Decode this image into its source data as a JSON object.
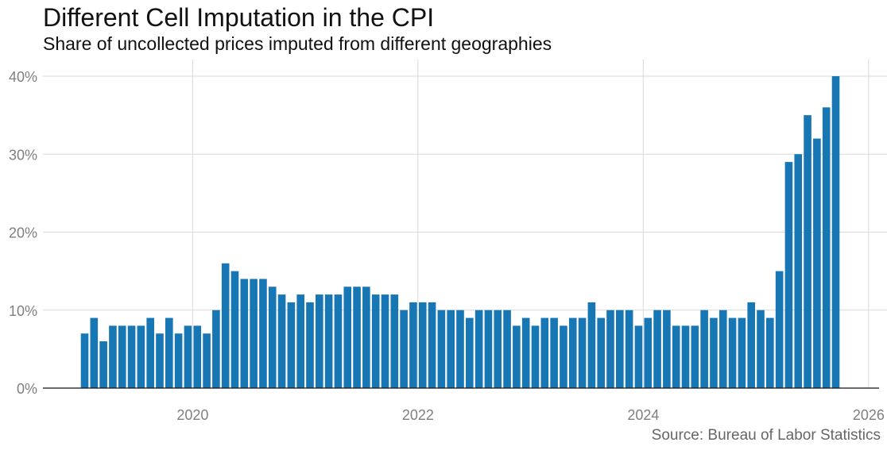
{
  "title": "Different Cell Imputation in the CPI",
  "subtitle": "Share of uncollected prices imputed from different geographies",
  "source": "Source: Bureau of Labor Statistics",
  "chart_data": {
    "type": "bar",
    "title": "Different Cell Imputation in the CPI",
    "subtitle": "Share of uncollected prices imputed from different geographies",
    "xlabel": "",
    "ylabel": "",
    "x_start": "2019-01",
    "x_ticks": [
      "2020",
      "2022",
      "2024",
      "2026"
    ],
    "y_ticks": [
      "0%",
      "10%",
      "20%",
      "30%",
      "40%"
    ],
    "ylim": [
      0,
      40
    ],
    "grid": true,
    "bar_color": "#1777b4",
    "categories": [
      "2019-01",
      "2019-02",
      "2019-03",
      "2019-04",
      "2019-05",
      "2019-06",
      "2019-07",
      "2019-08",
      "2019-09",
      "2019-10",
      "2019-11",
      "2019-12",
      "2020-01",
      "2020-02",
      "2020-03",
      "2020-04",
      "2020-05",
      "2020-06",
      "2020-07",
      "2020-08",
      "2020-09",
      "2020-10",
      "2020-11",
      "2020-12",
      "2021-01",
      "2021-02",
      "2021-03",
      "2021-04",
      "2021-05",
      "2021-06",
      "2021-07",
      "2021-08",
      "2021-09",
      "2021-10",
      "2021-11",
      "2021-12",
      "2022-01",
      "2022-02",
      "2022-03",
      "2022-04",
      "2022-05",
      "2022-06",
      "2022-07",
      "2022-08",
      "2022-09",
      "2022-10",
      "2022-11",
      "2022-12",
      "2023-01",
      "2023-02",
      "2023-03",
      "2023-04",
      "2023-05",
      "2023-06",
      "2023-07",
      "2023-08",
      "2023-09",
      "2023-10",
      "2023-11",
      "2023-12",
      "2024-01",
      "2024-02",
      "2024-03",
      "2024-04",
      "2024-05",
      "2024-06",
      "2024-07",
      "2024-08",
      "2024-09",
      "2024-10",
      "2024-11",
      "2024-12",
      "2025-01",
      "2025-02",
      "2025-03",
      "2025-04",
      "2025-05",
      "2025-06",
      "2025-07",
      "2025-08",
      "2025-09"
    ],
    "values": [
      7,
      9,
      6,
      8,
      8,
      8,
      8,
      9,
      7,
      9,
      7,
      8,
      8,
      7,
      10,
      16,
      15,
      14,
      14,
      14,
      13,
      12,
      11,
      12,
      11,
      12,
      12,
      12,
      13,
      13,
      13,
      12,
      12,
      12,
      10,
      11,
      11,
      11,
      10,
      10,
      10,
      9,
      10,
      10,
      10,
      10,
      8,
      9,
      8,
      9,
      9,
      8,
      9,
      9,
      11,
      9,
      10,
      10,
      10,
      8,
      9,
      10,
      10,
      8,
      8,
      8,
      10,
      9,
      10,
      9,
      9,
      11,
      10,
      9,
      15,
      29,
      30,
      35,
      32,
      36,
      40
    ]
  }
}
